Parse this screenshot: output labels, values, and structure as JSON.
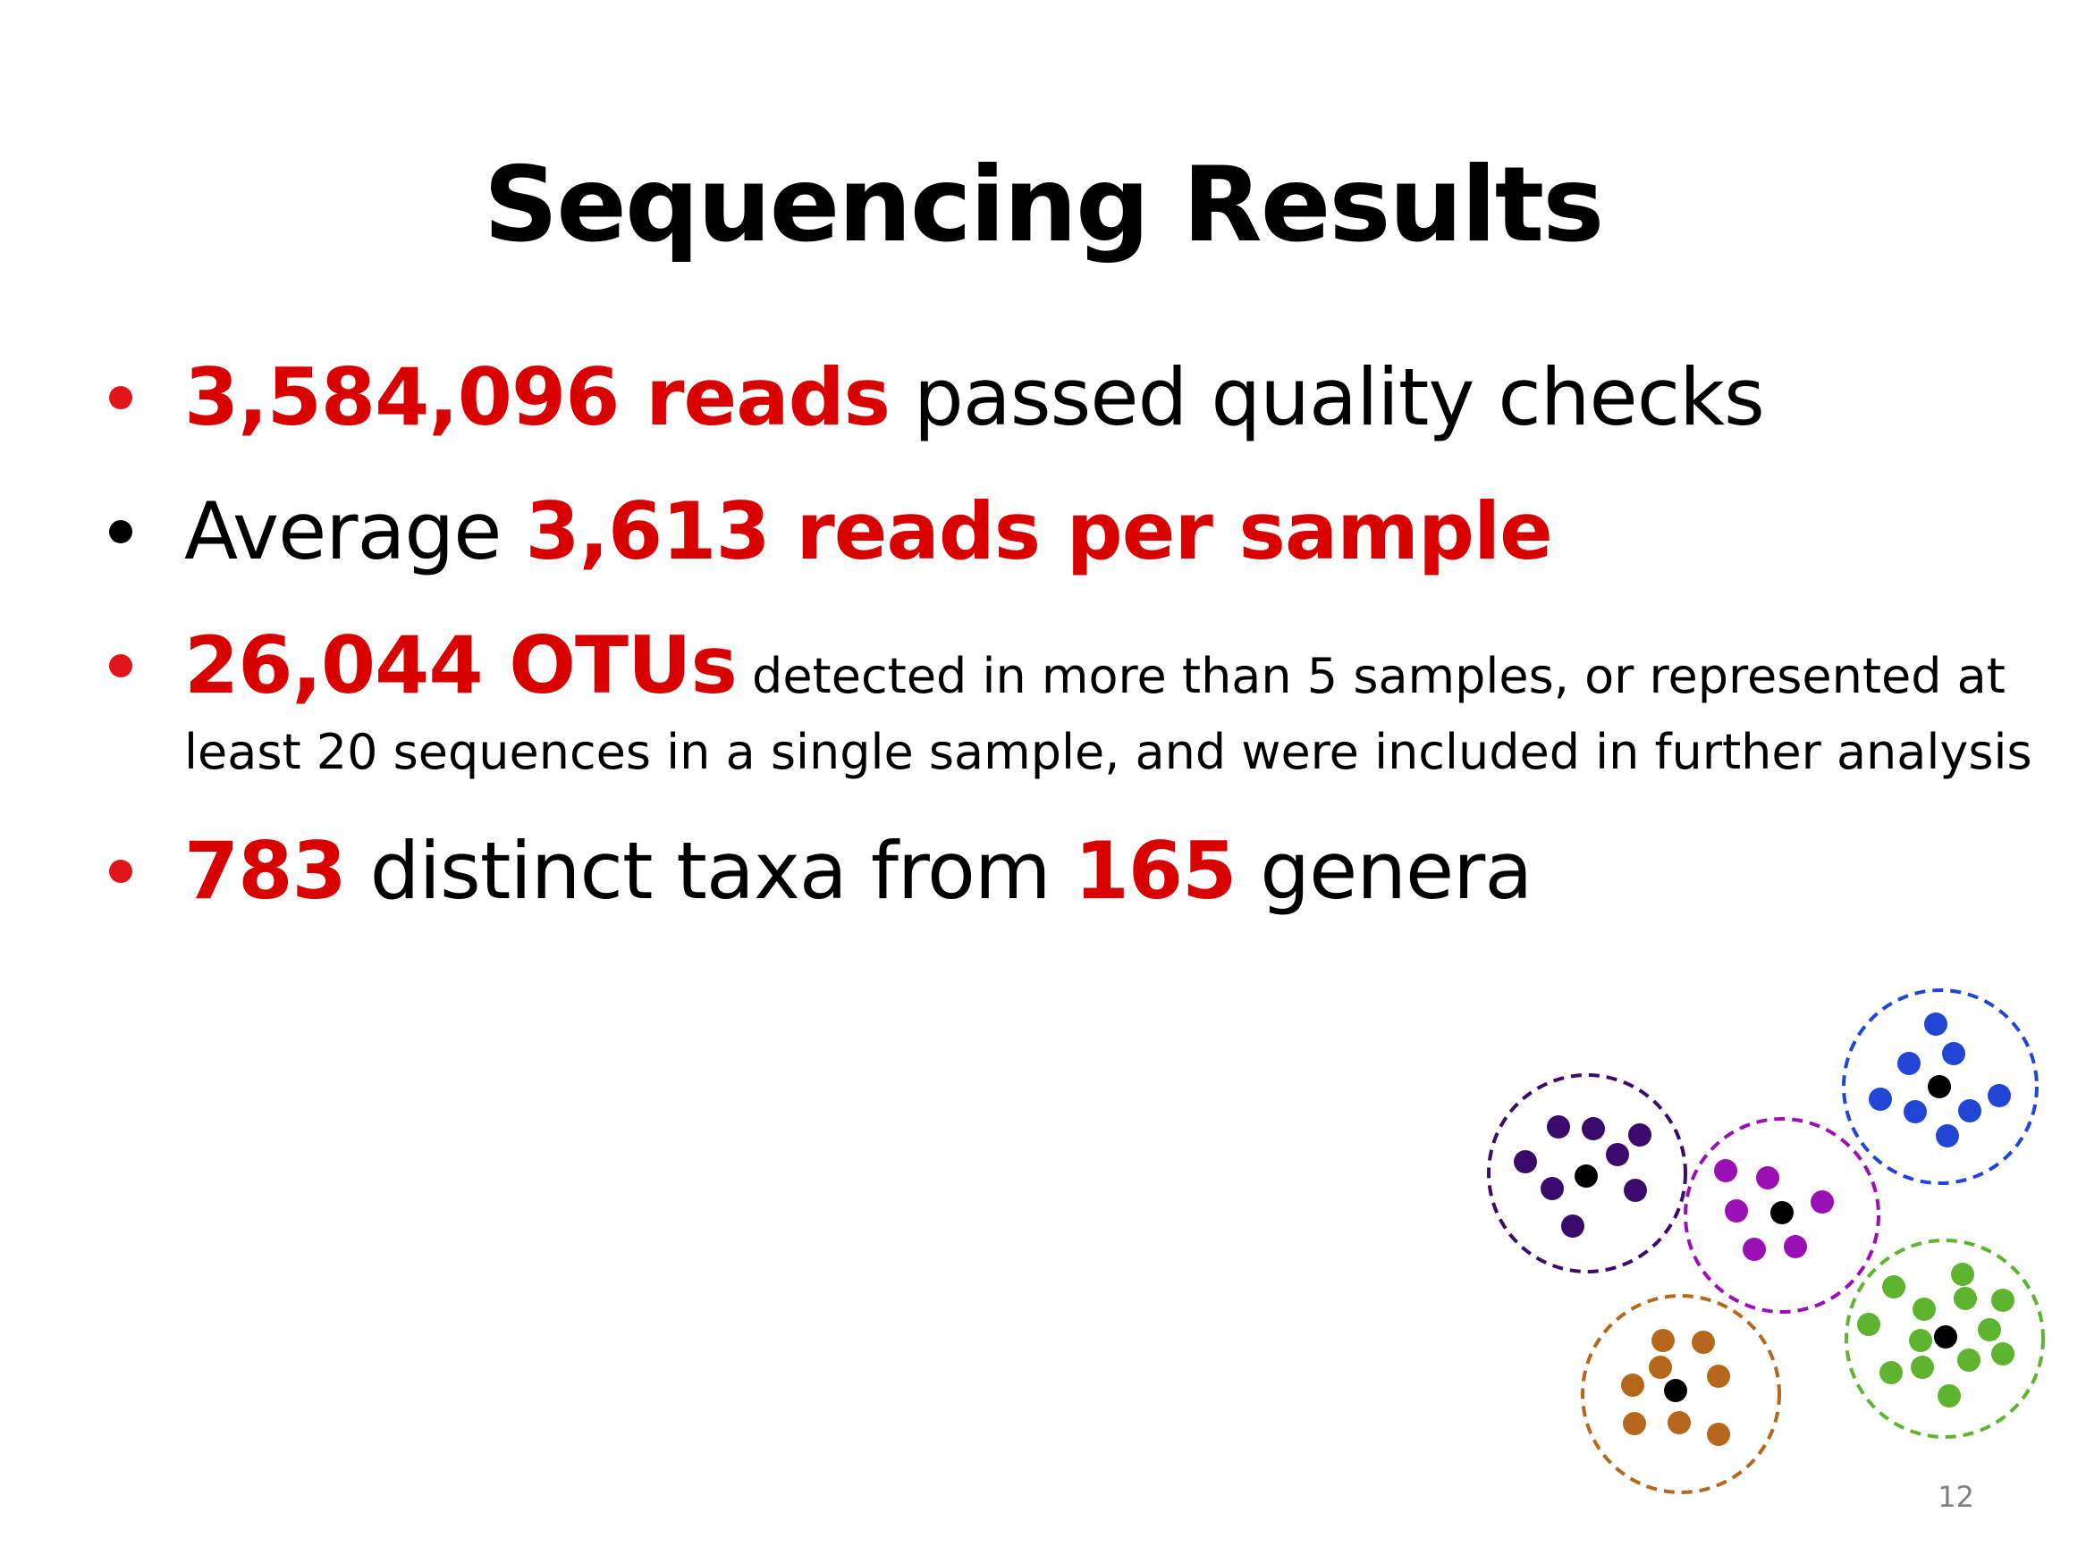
{
  "slide": {
    "title": "Sequencing Results",
    "page_number": "12"
  },
  "bullets": [
    {
      "parts": [
        {
          "text": "3,584,096 reads",
          "style": "highlight"
        },
        {
          "text": " passed quality checks",
          "style": "normal"
        }
      ]
    },
    {
      "parts": [
        {
          "text": "Average ",
          "style": "normal"
        },
        {
          "text": "3,613 reads per sample",
          "style": "highlight"
        }
      ]
    },
    {
      "parts": [
        {
          "text": "26,044 OTUs",
          "style": "highlight"
        },
        {
          "text": " detected in more than 5 samples, or represented at",
          "style": "small"
        }
      ],
      "continuation": "least 20 sequences in a single sample, and were included in further analysis"
    },
    {
      "parts": [
        {
          "text": "783",
          "style": "highlight"
        },
        {
          "text": " distinct taxa from ",
          "style": "normal"
        },
        {
          "text": "165",
          "style": "highlight"
        },
        {
          "text": " genera",
          "style": "normal"
        }
      ]
    }
  ],
  "colors": {
    "highlight": "#d90000",
    "bullet_red": "#e0161b",
    "bullet_black": "#000000",
    "page_number": "#7f7f7f",
    "cluster_dark_purple": "#3a0b6b",
    "cluster_magenta": "#9b10b5",
    "cluster_blue": "#2146d6",
    "cluster_green": "#5fb42f",
    "cluster_orange": "#b5681b",
    "centroid": "#000000"
  },
  "otu_clusters": [
    {
      "name": "dark-purple",
      "color_key": "cluster_dark_purple",
      "point_count": 9
    },
    {
      "name": "magenta",
      "color_key": "cluster_magenta",
      "point_count": 7
    },
    {
      "name": "blue",
      "color_key": "cluster_blue",
      "point_count": 9
    },
    {
      "name": "green",
      "color_key": "cluster_green",
      "point_count": 14
    },
    {
      "name": "orange",
      "color_key": "cluster_orange",
      "point_count": 9
    }
  ]
}
